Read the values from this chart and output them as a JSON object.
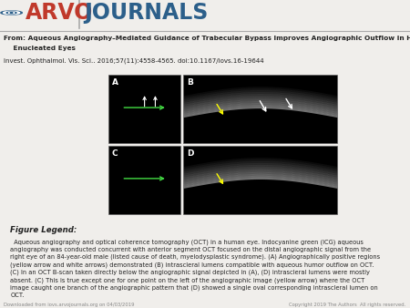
{
  "bg_color": "#f0eeeb",
  "arvo_text": "ARVO",
  "journals_text": "JOURNALS",
  "arvo_color": "#c0392b",
  "journals_color": "#2c5f8a",
  "from_line1": "From: Aqueous Angiography–Mediated Guidance of Trabecular Bypass Improves Angiographic Outflow in Human",
  "from_line2": "    Enucleated Eyes",
  "invest_line": "Invest. Ophthalmol. Vis. Sci.. 2016;57(11):4558-4565. doi:10.1167/iovs.16-19644",
  "legend_title": "Figure Legend:",
  "legend_text": "  Aqueous angiography and optical coherence tomography (OCT) in a human eye. Indocyanine green (ICG) aqueous\nangiography was conducted concurrent with anterior segment OCT focused on the distal angiographic signal from the\nright eye of an 84-year-old male (listed cause of death, myelodysplastic syndrome). (A) Angiographically positive regions\n(yellow arrow and white arrows) demonstrated (B) intrascleral lumens compatible with aqueous humor outflow on OCT.\n(C) In an OCT B-scan taken directly below the angiographic signal depicted in (A), (D) intrascleral lumens were mostly\nabsent. (C) This is true except one for one point on the left of the angiographic image (yellow arrow) where the OCT\nimage caught one branch of the angiographic pattern that (D) showed a single oval corresponding intrascleral lumen on\nOCT.",
  "dl_text": "Downloaded from iovs.arvojournals.org on 04/03/2019",
  "cr_text": "Copyright 2019 The Authors  All rights reserved.",
  "dark_gray": "#222222",
  "mid_gray": "#555555",
  "light_gray": "#888888"
}
